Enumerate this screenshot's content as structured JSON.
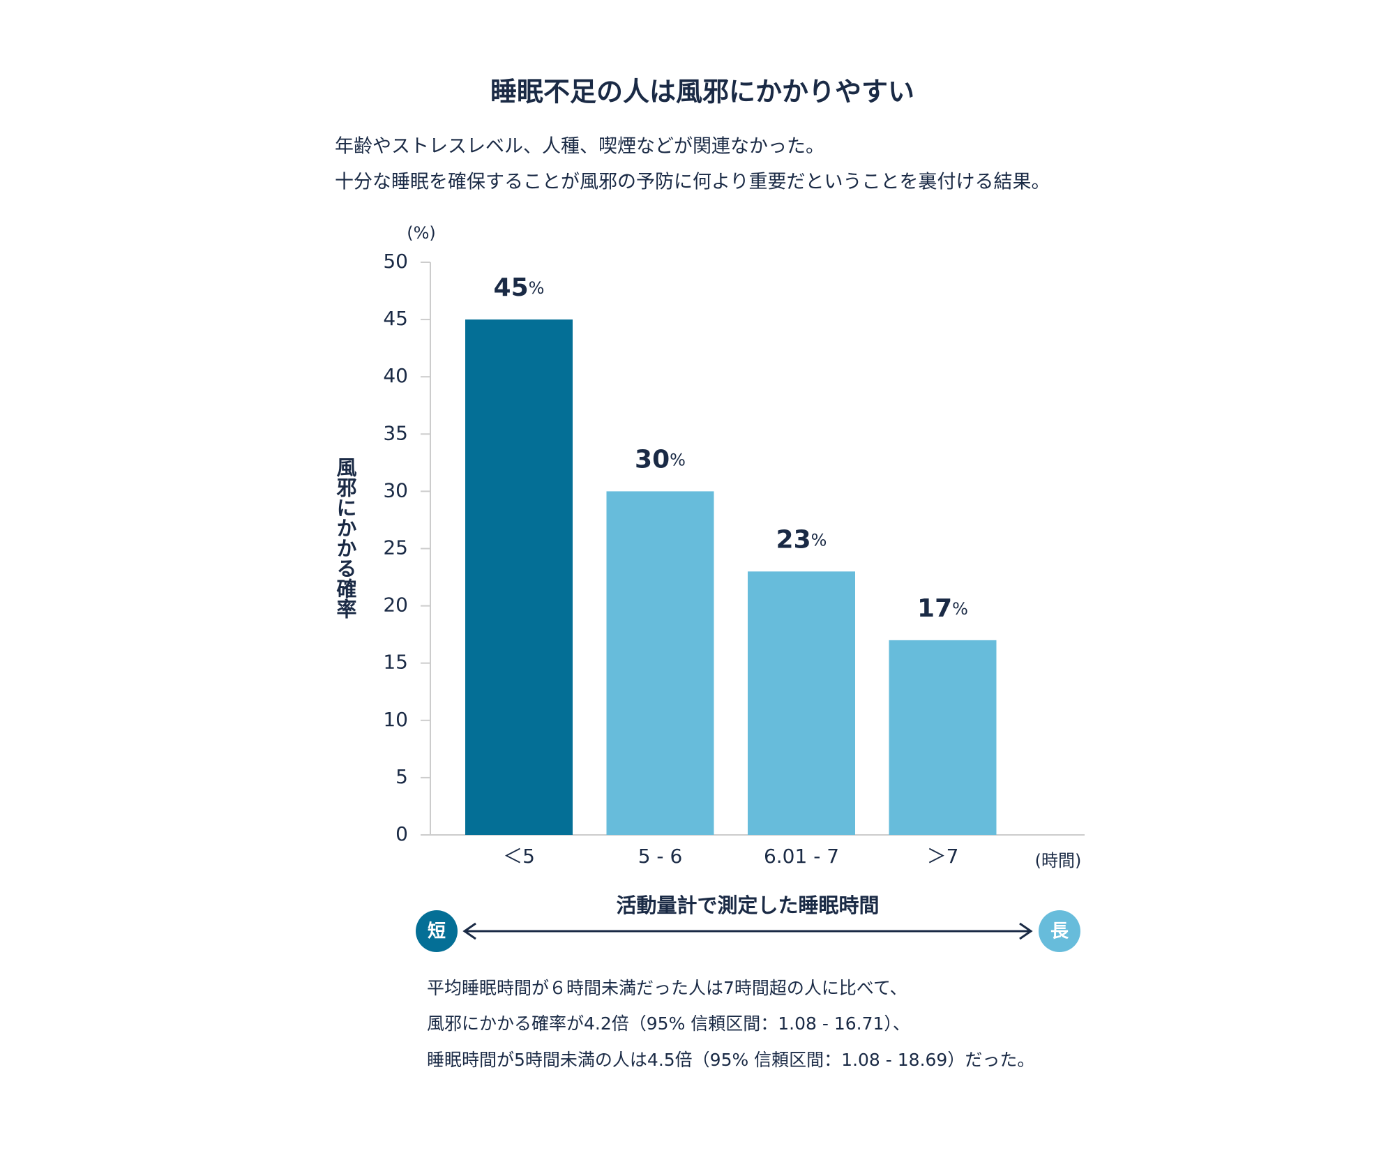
{
  "chart_data": {
    "type": "bar",
    "title": "睡眠不足の人は風邪にかかりやすい",
    "subtitle": [
      "年齢やストレスレベル、人種、喫煙などが関連なかった。",
      "十分な睡眠を確保することが風邪の予防に何より重要だということを裏付ける結果。"
    ],
    "y_unit": "(%)",
    "ylabel": "風邪にかかる確率",
    "x_unit": "(時間)",
    "xlabel": "活動量計で測定した睡眠時間",
    "arrow_labels": [
      "短",
      "長"
    ],
    "categories": [
      "＜5",
      "5 - 6",
      "6.01 - 7",
      "＞7"
    ],
    "values": [
      45,
      30,
      23,
      17
    ],
    "value_labels": [
      "45%",
      "30%",
      "23%",
      "17%"
    ],
    "colors": [
      "#046f96",
      "#67bcdb",
      "#67bcdb",
      "#67bcdb"
    ],
    "ylim": [
      0,
      50
    ],
    "yticks": [
      0,
      5,
      10,
      15,
      20,
      25,
      30,
      35,
      40,
      45,
      50
    ],
    "annotations": [
      "平均睡眠時間が６時間未満だった人は7時間超の人に比べて、",
      "風邪にかかる確率が4.2倍（95% 信頼区間：1.08 - 16.71）、",
      "睡眠時間が5時間未満の人は4.5倍（95% 信頼区間：1.08 - 18.69）だった。"
    ]
  }
}
